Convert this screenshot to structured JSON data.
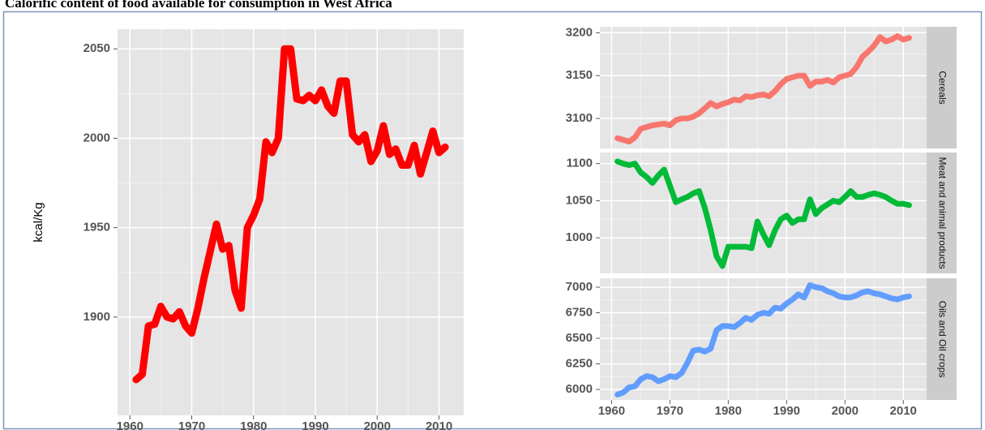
{
  "title": "Calorific content of food available for consumption in West Africa",
  "chart_data": [
    {
      "type": "line",
      "ylabel": "kcal/Kg",
      "color": "#ff0000",
      "grid": true,
      "x": [
        1961,
        1962,
        1963,
        1964,
        1965,
        1966,
        1967,
        1968,
        1969,
        1970,
        1971,
        1972,
        1973,
        1974,
        1975,
        1976,
        1977,
        1978,
        1979,
        1980,
        1981,
        1982,
        1983,
        1984,
        1985,
        1986,
        1987,
        1988,
        1989,
        1990,
        1991,
        1992,
        1993,
        1994,
        1995,
        1996,
        1997,
        1998,
        1999,
        2000,
        2001,
        2002,
        2003,
        2004,
        2005,
        2006,
        2007,
        2008,
        2009,
        2010,
        2011
      ],
      "values": [
        1865,
        1868,
        1895,
        1896,
        1906,
        1900,
        1899,
        1903,
        1895,
        1891,
        1905,
        1922,
        1937,
        1952,
        1938,
        1940,
        1915,
        1905,
        1950,
        1957,
        1966,
        1998,
        1992,
        2000,
        2050,
        2050,
        2022,
        2021,
        2024,
        2021,
        2027,
        2018,
        2014,
        2032,
        2032,
        2002,
        1998,
        2002,
        1987,
        1993,
        2007,
        1991,
        1994,
        1985,
        1985,
        1996,
        1980,
        1992,
        2004,
        1992,
        1995
      ],
      "xlim": [
        1958,
        2014
      ],
      "xticks": [
        1960,
        1970,
        1980,
        1990,
        2000,
        2010
      ],
      "ylim": [
        1845,
        2061
      ],
      "yticks": [
        1900,
        1950,
        2000,
        2050
      ]
    },
    {
      "type": "line",
      "panel_label": "Cereals",
      "color": "#f8766d",
      "grid": true,
      "x": [
        1961,
        1962,
        1963,
        1964,
        1965,
        1966,
        1967,
        1968,
        1969,
        1970,
        1971,
        1972,
        1973,
        1974,
        1975,
        1976,
        1977,
        1978,
        1979,
        1980,
        1981,
        1982,
        1983,
        1984,
        1985,
        1986,
        1987,
        1988,
        1989,
        1990,
        1991,
        1992,
        1993,
        1994,
        1995,
        1996,
        1997,
        1998,
        1999,
        2000,
        2001,
        2002,
        2003,
        2004,
        2005,
        2006,
        2007,
        2008,
        2009,
        2010,
        2011
      ],
      "values": [
        3077,
        3075,
        3073,
        3078,
        3088,
        3090,
        3092,
        3093,
        3094,
        3092,
        3098,
        3100,
        3100,
        3102,
        3106,
        3112,
        3118,
        3114,
        3117,
        3119,
        3122,
        3121,
        3126,
        3125,
        3127,
        3128,
        3126,
        3132,
        3140,
        3146,
        3148,
        3150,
        3150,
        3138,
        3143,
        3143,
        3145,
        3142,
        3148,
        3150,
        3152,
        3160,
        3172,
        3178,
        3185,
        3195,
        3190,
        3192,
        3196,
        3192,
        3194
      ],
      "xlim": [
        1958,
        2014
      ],
      "ylim": [
        3065,
        3207
      ],
      "yticks": [
        3100,
        3150,
        3200
      ]
    },
    {
      "type": "line",
      "panel_label": "Meat and animal products",
      "color": "#00ba38",
      "grid": true,
      "x": [
        1961,
        1962,
        1963,
        1964,
        1965,
        1966,
        1967,
        1968,
        1969,
        1970,
        1971,
        1972,
        1973,
        1974,
        1975,
        1976,
        1977,
        1978,
        1979,
        1980,
        1981,
        1982,
        1983,
        1984,
        1985,
        1986,
        1987,
        1988,
        1989,
        1990,
        1991,
        1992,
        1993,
        1994,
        1995,
        1996,
        1997,
        1998,
        1999,
        2000,
        2001,
        2002,
        2003,
        2004,
        2005,
        2006,
        2007,
        2008,
        2009,
        2010,
        2011
      ],
      "values": [
        1103,
        1100,
        1098,
        1100,
        1088,
        1082,
        1074,
        1084,
        1092,
        1070,
        1048,
        1052,
        1055,
        1060,
        1063,
        1040,
        1010,
        975,
        962,
        988,
        988,
        988,
        988,
        986,
        1022,
        1005,
        990,
        1010,
        1025,
        1030,
        1020,
        1025,
        1025,
        1052,
        1032,
        1040,
        1045,
        1050,
        1048,
        1055,
        1063,
        1055,
        1055,
        1058,
        1060,
        1058,
        1055,
        1050,
        1046,
        1046,
        1044
      ],
      "xlim": [
        1958,
        2014
      ],
      "ylim": [
        952,
        1115
      ],
      "yticks": [
        1000,
        1050,
        1100
      ]
    },
    {
      "type": "line",
      "panel_label": "Oils and Oil crops",
      "color": "#619cff",
      "grid": true,
      "x": [
        1961,
        1962,
        1963,
        1964,
        1965,
        1966,
        1967,
        1968,
        1969,
        1970,
        1971,
        1972,
        1973,
        1974,
        1975,
        1976,
        1977,
        1978,
        1979,
        1980,
        1981,
        1982,
        1983,
        1984,
        1985,
        1986,
        1987,
        1988,
        1989,
        1990,
        1991,
        1992,
        1993,
        1994,
        1995,
        1996,
        1997,
        1998,
        1999,
        2000,
        2001,
        2002,
        2003,
        2004,
        2005,
        2006,
        2007,
        2008,
        2009,
        2010,
        2011
      ],
      "values": [
        5950,
        5970,
        6020,
        6030,
        6100,
        6130,
        6120,
        6080,
        6100,
        6130,
        6120,
        6160,
        6260,
        6380,
        6390,
        6370,
        6400,
        6580,
        6620,
        6620,
        6610,
        6650,
        6700,
        6680,
        6730,
        6750,
        6740,
        6800,
        6790,
        6840,
        6880,
        6930,
        6900,
        7020,
        7000,
        6990,
        6960,
        6940,
        6910,
        6900,
        6900,
        6920,
        6950,
        6960,
        6940,
        6930,
        6910,
        6890,
        6880,
        6900,
        6910
      ],
      "xlim": [
        1958,
        2014
      ],
      "xticks": [
        1960,
        1970,
        1980,
        1990,
        2000,
        2010
      ],
      "ylim": [
        5897,
        7087
      ],
      "yticks": [
        6000,
        6250,
        6500,
        6750,
        7000
      ]
    }
  ]
}
